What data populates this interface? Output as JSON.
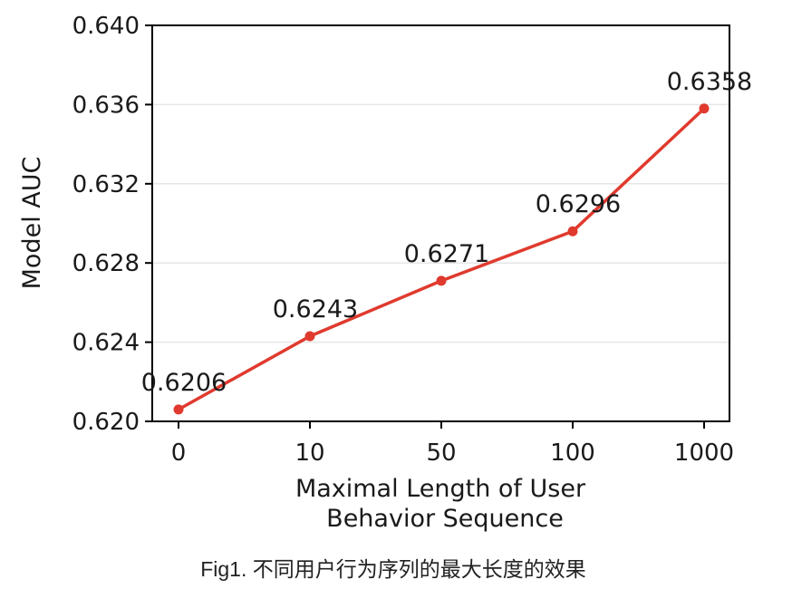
{
  "chart_data": {
    "type": "line",
    "categories": [
      "0",
      "10",
      "50",
      "100",
      "1000"
    ],
    "values": [
      0.6206,
      0.6243,
      0.6271,
      0.6296,
      0.6358
    ],
    "data_labels": [
      "0.6206",
      "0.6243",
      "0.6271",
      "0.6296",
      "0.6358"
    ],
    "xlabel": [
      "Maximal Length of User",
      "Behavior Sequence"
    ],
    "ylabel": "Model AUC",
    "ylim": [
      0.62,
      0.64
    ],
    "yticks": [
      "0.620",
      "0.624",
      "0.628",
      "0.632",
      "0.636",
      "0.640"
    ],
    "grid": "horizontal, light",
    "line_color": "#e03a2e"
  },
  "caption": "Fig1. 不同用户行为序列的最大长度的效果"
}
